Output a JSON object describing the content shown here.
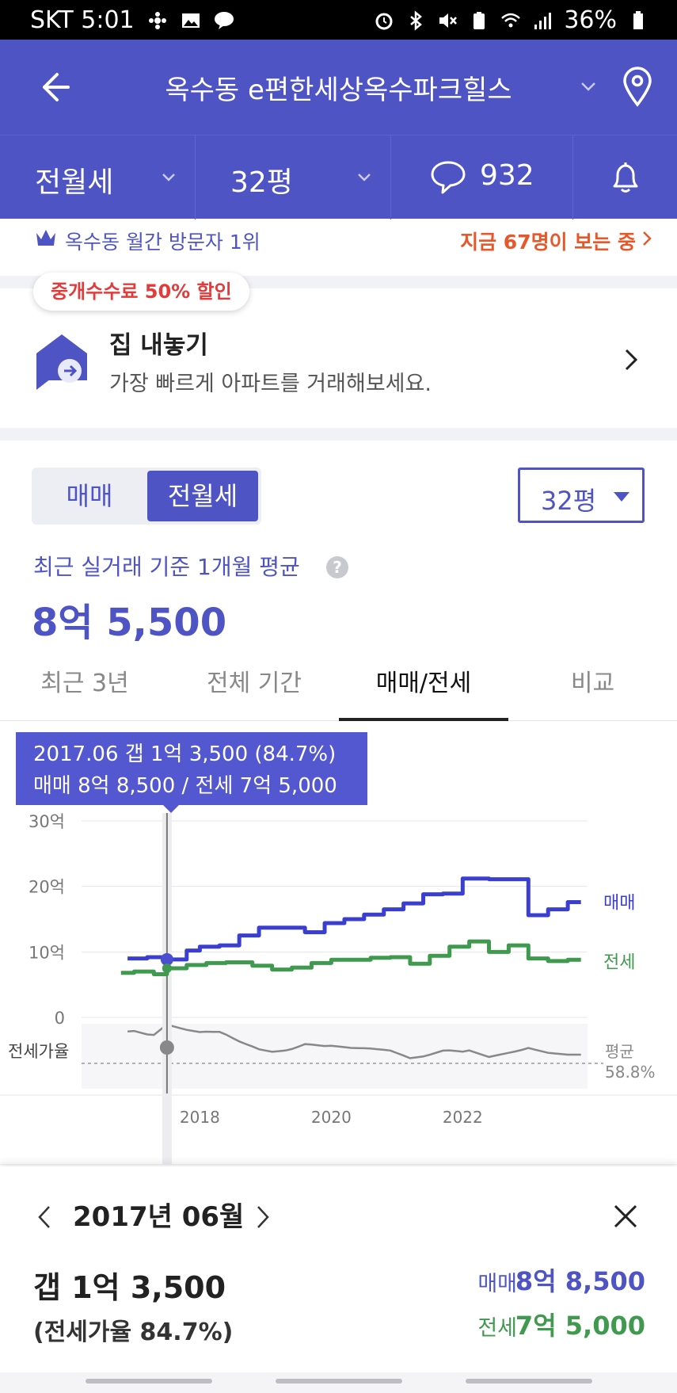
{
  "status": {
    "carrier_time": "SKT 5:01",
    "battery": "36%"
  },
  "header": {
    "title": "옥수동 e편한세상옥수파크힐스"
  },
  "subbar": {
    "deal_type": "전월세",
    "size": "32평",
    "comments": "932"
  },
  "visitors": {
    "rank": "옥수동 월간 방문자 1위",
    "watching": "지금 67명이 보는 중"
  },
  "sell": {
    "badge": "중개수수료 50% 할인",
    "title": "집 내놓기",
    "desc": "가장 빠르게 아파트를 거래해보세요."
  },
  "toggle": {
    "sale": "매매",
    "rent": "전월세"
  },
  "size_select": "32평",
  "average": {
    "label": "최근 실거래 기준 1개월 평균",
    "value": "8억 5,500"
  },
  "tabs": [
    "최근 3년",
    "전체 기간",
    "매매/전세",
    "비교"
  ],
  "tooltip": {
    "line1": "2017.06  갭 1억 3,500 (84.7%)",
    "line2": "매매 8억 8,500 / 전세 7억 5,000"
  },
  "chart_data": {
    "type": "line",
    "y_ticks": [
      "30억",
      "20억",
      "10억",
      "0"
    ],
    "ylim": [
      0,
      30
    ],
    "x_ticks": [
      "2018",
      "2020",
      "2022"
    ],
    "ratio_label": "전세가율",
    "avg_label": "평균",
    "avg_value": "58.8%",
    "selected_x": 2017.5,
    "series": [
      {
        "name": "매매",
        "color": "#3b3fd0",
        "x": [
          2016.9,
          2017.2,
          2017.5,
          2017.8,
          2018.0,
          2018.3,
          2018.6,
          2018.9,
          2019.3,
          2019.6,
          2019.9,
          2020.2,
          2020.5,
          2020.8,
          2021.1,
          2021.4,
          2021.7,
          2022.0,
          2022.4,
          2022.7,
          2023.0,
          2023.3,
          2023.6,
          2023.8
        ],
        "values": [
          9.0,
          9.2,
          8.85,
          10.2,
          10.8,
          11.0,
          12.5,
          13.7,
          13.7,
          13.0,
          14.4,
          15.0,
          15.7,
          16.5,
          17.4,
          18.8,
          18.9,
          21.2,
          21.1,
          21.1,
          15.6,
          16.5,
          17.6,
          17.6
        ]
      },
      {
        "name": "전세",
        "color": "#3f9a4f",
        "x": [
          2016.8,
          2017.0,
          2017.3,
          2017.5,
          2017.8,
          2018.1,
          2018.4,
          2018.8,
          2019.1,
          2019.4,
          2019.7,
          2020.0,
          2020.3,
          2020.6,
          2020.9,
          2021.2,
          2021.5,
          2021.8,
          2022.1,
          2022.4,
          2022.7,
          2023.0,
          2023.3,
          2023.6,
          2023.8
        ],
        "values": [
          6.8,
          7.0,
          6.6,
          7.5,
          8.0,
          8.3,
          8.4,
          7.9,
          7.3,
          7.6,
          8.3,
          8.8,
          8.8,
          9.1,
          9.2,
          8.2,
          9.4,
          10.8,
          11.6,
          10.0,
          11.0,
          9.0,
          8.6,
          8.8,
          8.8
        ]
      }
    ]
  },
  "detail": {
    "month": "2017년 06월",
    "gap": "갭 1억 3,500",
    "ratio": "(전세가율 84.7%)",
    "sale_label": "매매",
    "sale_value": "8억 8,500",
    "rent_label": "전세",
    "rent_value": "7억 5,000"
  }
}
